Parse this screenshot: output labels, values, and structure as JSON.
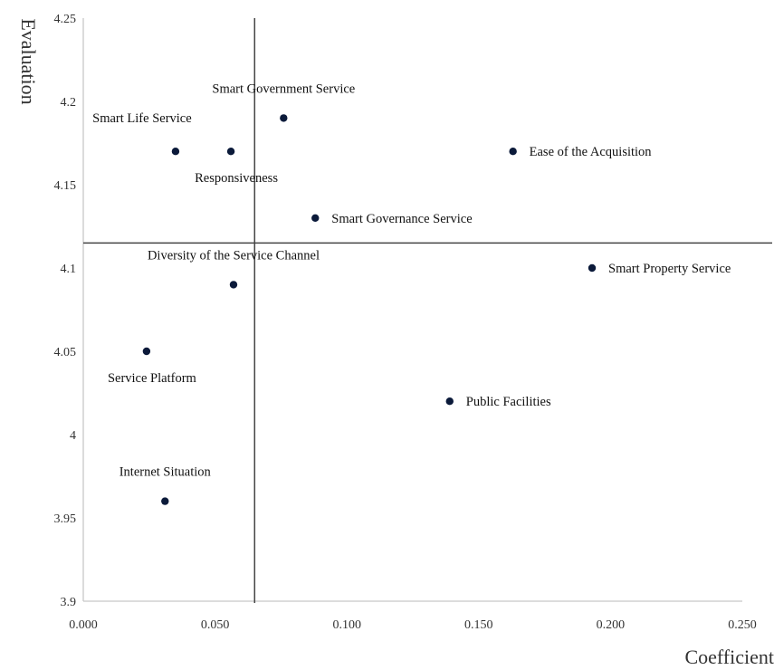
{
  "chart_data": {
    "type": "scatter",
    "xlabel": "Coefficient",
    "ylabel": "Evaluation",
    "xlim": [
      0,
      0.25
    ],
    "ylim": [
      3.9,
      4.25
    ],
    "x_ticks": [
      "0.000",
      "0.050",
      "0.100",
      "0.150",
      "0.200",
      "0.250"
    ],
    "y_ticks": [
      "3.9",
      "3.95",
      "4",
      "4.05",
      "4.1",
      "4.15",
      "4.2",
      "4.25"
    ],
    "grid": false,
    "point_color": "#0b1a3a",
    "reference_lines": {
      "x": 0.065,
      "y": 4.115
    },
    "points": [
      {
        "label": "Smart Government Service",
        "x": 0.076,
        "y": 4.19,
        "label_pos": "above"
      },
      {
        "label": "Smart Life Service",
        "x": 0.035,
        "y": 4.17,
        "label_pos": "above-left"
      },
      {
        "label": "Responsiveness",
        "x": 0.056,
        "y": 4.17,
        "label_pos": "below"
      },
      {
        "label": "Ease of the Acquisition",
        "x": 0.163,
        "y": 4.17,
        "label_pos": "right"
      },
      {
        "label": "Smart Governance Service",
        "x": 0.088,
        "y": 4.13,
        "label_pos": "right"
      },
      {
        "label": "Smart Property Service",
        "x": 0.193,
        "y": 4.1,
        "label_pos": "right"
      },
      {
        "label": "Diversity of the Service Channel",
        "x": 0.057,
        "y": 4.09,
        "label_pos": "above"
      },
      {
        "label": "Service Platform",
        "x": 0.024,
        "y": 4.05,
        "label_pos": "below"
      },
      {
        "label": "Public Facilities",
        "x": 0.139,
        "y": 4.02,
        "label_pos": "right"
      },
      {
        "label": "Internet Situation",
        "x": 0.031,
        "y": 3.96,
        "label_pos": "above"
      }
    ]
  }
}
